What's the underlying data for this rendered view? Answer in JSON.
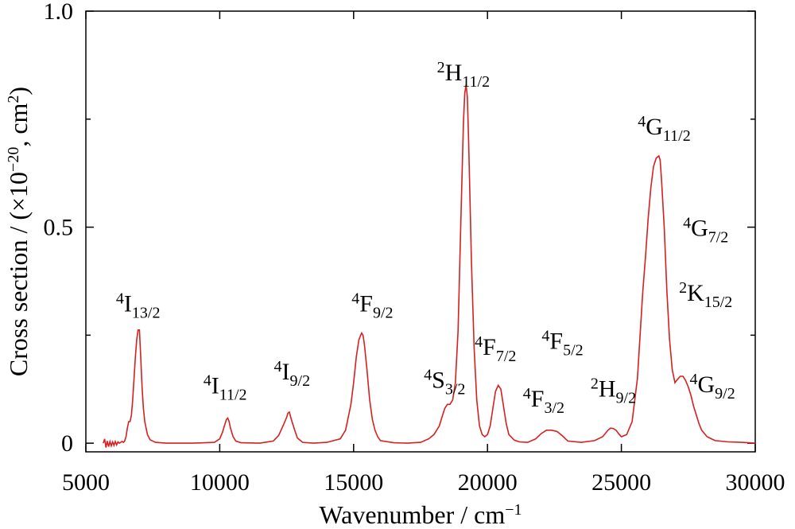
{
  "chart_data": {
    "type": "line",
    "xlabel_main": "Wavenumber / cm",
    "xlabel_sup": "−1",
    "ylabel_pre": "Cross section / (×10",
    "ylabel_sup1": "−20",
    "ylabel_mid": ", cm",
    "ylabel_sup2": "2",
    "ylabel_post": ")",
    "xlim": [
      5000,
      30000
    ],
    "ylim": [
      -0.02,
      1.0
    ],
    "x_ticks": [
      5000,
      10000,
      15000,
      20000,
      25000,
      30000
    ],
    "x_tick_labels": [
      "5000",
      "10000",
      "15000",
      "20000",
      "25000",
      "30000"
    ],
    "y_ticks": [
      0,
      0.5,
      1.0
    ],
    "y_tick_labels": [
      "0",
      "0.5",
      "1.0"
    ],
    "y_minor_ticks": [
      0.25,
      0.75
    ],
    "grid": false,
    "line_color": "#d62020",
    "series": [
      {
        "x": [
          5650,
          5700,
          5750,
          5800,
          5850,
          5900,
          5950,
          6000,
          6050,
          6100,
          6150,
          6200,
          6250,
          6300,
          6350,
          6400,
          6450,
          6500,
          6550,
          6600,
          6650,
          6700,
          6750,
          6800,
          6850,
          6900,
          6950,
          7000,
          7050,
          7100,
          7150,
          7200,
          7300,
          7400,
          7600,
          8000,
          9000,
          9800,
          10000,
          10100,
          10200,
          10250,
          10300,
          10350,
          10400,
          10500,
          10600,
          10800,
          11500,
          12000,
          12200,
          12400,
          12500,
          12550,
          12600,
          12650,
          12700,
          12800,
          12900,
          13100,
          13500,
          14000,
          14500,
          14700,
          14900,
          15000,
          15100,
          15200,
          15300,
          15350,
          15400,
          15500,
          15600,
          15700,
          15800,
          15900,
          16000,
          16500,
          17000,
          17500,
          17800,
          18000,
          18200,
          18300,
          18400,
          18500,
          18600,
          18700,
          18800,
          18900,
          19000,
          19100,
          19150,
          19200,
          19250,
          19300,
          19400,
          19500,
          19600,
          19700,
          19800,
          19900,
          20000,
          20100,
          20200,
          20300,
          20400,
          20500,
          20600,
          20700,
          20800,
          21000,
          21200,
          21500,
          21800,
          22000,
          22200,
          22400,
          22600,
          22800,
          23000,
          23500,
          24000,
          24300,
          24500,
          24600,
          24700,
          24800,
          24900,
          25000,
          25200,
          25400,
          25600,
          25800,
          25900,
          26000,
          26100,
          26200,
          26300,
          26400,
          26450,
          26500,
          26600,
          26700,
          26800,
          26900,
          27000,
          27100,
          27200,
          27300,
          27400,
          27500,
          27600,
          27700,
          27800,
          27900,
          28000,
          28200,
          28500,
          29000,
          29500,
          30000
        ],
        "y": [
          0.0,
          0.01,
          -0.01,
          0.005,
          -0.008,
          0.004,
          -0.006,
          0.003,
          -0.005,
          0.004,
          -0.004,
          0.003,
          0.0,
          0.002,
          0.004,
          0.002,
          0.005,
          0.015,
          0.035,
          0.05,
          0.05,
          0.065,
          0.1,
          0.15,
          0.2,
          0.24,
          0.262,
          0.262,
          0.2,
          0.13,
          0.08,
          0.05,
          0.02,
          0.008,
          0.002,
          0.0,
          0.0,
          0.002,
          0.01,
          0.025,
          0.045,
          0.055,
          0.058,
          0.05,
          0.035,
          0.015,
          0.005,
          0.001,
          0.0,
          0.005,
          0.018,
          0.045,
          0.06,
          0.07,
          0.072,
          0.06,
          0.05,
          0.03,
          0.012,
          0.002,
          0.0,
          0.002,
          0.01,
          0.03,
          0.09,
          0.14,
          0.2,
          0.24,
          0.255,
          0.25,
          0.23,
          0.17,
          0.1,
          0.055,
          0.03,
          0.015,
          0.006,
          0.001,
          0.0,
          0.002,
          0.01,
          0.02,
          0.04,
          0.06,
          0.08,
          0.09,
          0.09,
          0.1,
          0.14,
          0.26,
          0.5,
          0.74,
          0.81,
          0.83,
          0.8,
          0.69,
          0.42,
          0.22,
          0.1,
          0.04,
          0.02,
          0.015,
          0.02,
          0.04,
          0.08,
          0.12,
          0.134,
          0.125,
          0.085,
          0.045,
          0.02,
          0.007,
          0.003,
          0.002,
          0.01,
          0.022,
          0.03,
          0.03,
          0.027,
          0.017,
          0.005,
          0.002,
          0.006,
          0.015,
          0.03,
          0.035,
          0.034,
          0.03,
          0.022,
          0.015,
          0.02,
          0.05,
          0.15,
          0.35,
          0.43,
          0.52,
          0.59,
          0.64,
          0.66,
          0.665,
          0.655,
          0.61,
          0.5,
          0.35,
          0.24,
          0.17,
          0.14,
          0.148,
          0.155,
          0.155,
          0.145,
          0.13,
          0.11,
          0.085,
          0.065,
          0.045,
          0.03,
          0.015,
          0.006,
          0.003,
          0.002,
          0.0
        ]
      }
    ],
    "annotations": [
      {
        "x": 6950,
        "y": 0.305,
        "sup": "4",
        "main": "I",
        "sub": "13/2"
      },
      {
        "x": 10200,
        "y": 0.115,
        "sup": "4",
        "main": "I",
        "sub": "11/2"
      },
      {
        "x": 12700,
        "y": 0.148,
        "sup": "4",
        "main": "I",
        "sub": "9/2"
      },
      {
        "x": 15700,
        "y": 0.305,
        "sup": "4",
        "main": "F",
        "sub": "9/2"
      },
      {
        "x": 18400,
        "y": 0.128,
        "sup": "4",
        "main": "S",
        "sub": "3/2"
      },
      {
        "x": 20300,
        "y": 0.205,
        "sup": "4",
        "main": "F",
        "sub": "7/2"
      },
      {
        "x": 22800,
        "y": 0.218,
        "sup": "4",
        "main": "F",
        "sub": "5/2"
      },
      {
        "x": 22100,
        "y": 0.085,
        "sup": "4",
        "main": "F",
        "sub": "3/2"
      },
      {
        "x": 24700,
        "y": 0.108,
        "sup": "2",
        "main": "H",
        "sub": "9/2"
      },
      {
        "x": 19100,
        "y": 0.84,
        "sup": "2",
        "main": "H",
        "sub": "11/2"
      },
      {
        "x": 26600,
        "y": 0.715,
        "sup": "4",
        "main": "G",
        "sub": "11/2"
      },
      {
        "x": 28150,
        "y": 0.48,
        "sup": "4",
        "main": "G",
        "sub": "7/2"
      },
      {
        "x": 28150,
        "y": 0.33,
        "sup": "2",
        "main": "K",
        "sub": "15/2"
      },
      {
        "x": 28400,
        "y": 0.118,
        "sup": "4",
        "main": "G",
        "sub": "9/2"
      }
    ]
  }
}
